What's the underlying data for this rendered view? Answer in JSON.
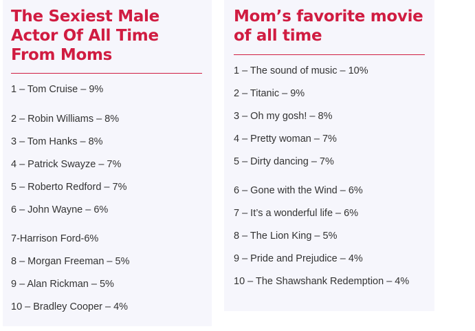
{
  "left": {
    "title": "The Sexiest Male Actor Of All Time From Moms",
    "items": [
      "1 – Tom Cruise – 9%",
      "2 – Robin Williams – 8%",
      "3 – Tom Hanks – 8%",
      "4 – Patrick Swayze – 7%",
      "5 – Roberto Redford – 7%",
      "6 – John Wayne – 6%",
      "7-Harrison Ford-6%",
      "8 – Morgan Freeman – 5%",
      "9 – Alan Rickman – 5%",
      "10 – Bradley Cooper – 4%"
    ]
  },
  "right": {
    "title": "Mom’s favorite movie of all time",
    "items": [
      "1 – The sound of music – 10%",
      "2 – Titanic – 9%",
      "3 – Oh my gosh! – 8%",
      "4 – Pretty woman – 7%",
      "5 – Dirty dancing – 7%",
      "6 – Gone with the Wind – 6%",
      "7 – It’s a wonderful life – 6%",
      "8 – The Lion King – 5%",
      "9 – Pride and Prejudice – 4%",
      "10 – The Shawshank Redemption – 4%"
    ]
  }
}
